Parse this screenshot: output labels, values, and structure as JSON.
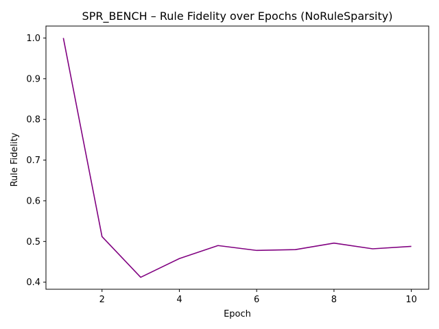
{
  "chart_data": {
    "type": "line",
    "title": "SPR_BENCH – Rule Fidelity over Epochs (NoRuleSparsity)",
    "xlabel": "Epoch",
    "ylabel": "Rule Fidelity",
    "x": [
      1,
      2,
      3,
      4,
      5,
      6,
      7,
      8,
      9,
      10
    ],
    "series": [
      {
        "values": [
          1.0,
          0.512,
          0.412,
          0.458,
          0.49,
          0.478,
          0.48,
          0.496,
          0.482,
          0.488
        ],
        "color": "#800080"
      }
    ],
    "xlim": [
      0.55,
      10.45
    ],
    "ylim": [
      0.3826,
      1.0294
    ],
    "xticks": [
      2,
      4,
      6,
      8,
      10
    ],
    "xtick_labels": [
      "2",
      "4",
      "6",
      "8",
      "10"
    ],
    "yticks": [
      0.4,
      0.5,
      0.6,
      0.7,
      0.8,
      0.9,
      1.0
    ],
    "ytick_labels": [
      "0.4",
      "0.5",
      "0.6",
      "0.7",
      "0.8",
      "0.9",
      "1.0"
    ],
    "grid": false,
    "legend": "none"
  }
}
